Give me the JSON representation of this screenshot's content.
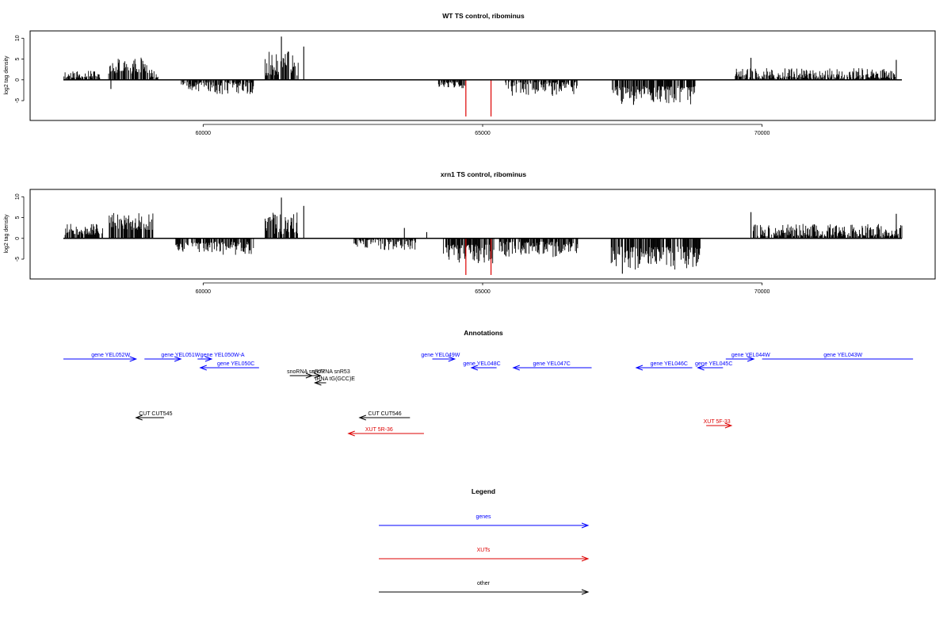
{
  "chart_data": [
    {
      "type": "bar",
      "title": "WT TS control, ribominus",
      "xlabel": "",
      "ylabel": "log2 tag density",
      "xlim": [
        57500,
        72500
      ],
      "ylim": [
        -9,
        11
      ],
      "xticks": [
        60000,
        65000,
        70000
      ],
      "xtick_labels": [
        "60000",
        "65000",
        "70000"
      ],
      "yticks": [
        10,
        5,
        0,
        -5
      ],
      "ytick_labels": [
        "10",
        "5",
        "0",
        "-5"
      ],
      "highlight_color": "#dd0000",
      "bar_color": "#000000",
      "series_segments": [
        {
          "x0": 57500,
          "x1": 58150,
          "sign": 1,
          "min": 0.5,
          "max": 2.2,
          "seed": 11
        },
        {
          "x0": 58300,
          "x1": 59000,
          "sign": 1,
          "min": 1.5,
          "max": 5.5,
          "seed": 12
        },
        {
          "x0": 59000,
          "x1": 59200,
          "sign": 1,
          "min": 0.5,
          "max": 2.5,
          "seed": 13
        },
        {
          "x0": 59600,
          "x1": 60100,
          "sign": -1,
          "min": 0.5,
          "max": 3.0,
          "seed": 14
        },
        {
          "x0": 60100,
          "x1": 60900,
          "sign": -1,
          "min": 0.5,
          "max": 3.5,
          "seed": 15
        },
        {
          "x0": 61100,
          "x1": 61700,
          "sign": 1,
          "min": 1.0,
          "max": 7.0,
          "seed": 16
        },
        {
          "x0": 64200,
          "x1": 64700,
          "sign": -1,
          "min": 0.5,
          "max": 2.5,
          "seed": 17
        },
        {
          "x0": 65400,
          "x1": 66700,
          "sign": -1,
          "min": 0.5,
          "max": 4.0,
          "seed": 18
        },
        {
          "x0": 67300,
          "x1": 68800,
          "sign": -1,
          "min": 1.5,
          "max": 6.0,
          "seed": 19
        },
        {
          "x0": 69500,
          "x1": 72400,
          "sign": 1,
          "min": 0.3,
          "max": 2.8,
          "seed": 20
        }
      ],
      "spikes": [
        {
          "x": 61400,
          "y": 10.4
        },
        {
          "x": 61800,
          "y": 8.0
        },
        {
          "x": 69800,
          "y": 5.3
        },
        {
          "x": 72400,
          "y": 4.8
        },
        {
          "x": 58350,
          "y": -2.2
        },
        {
          "x": 67700,
          "y": -6.0
        }
      ],
      "highlight_bars": [
        {
          "x": 64700,
          "y": -8.8
        },
        {
          "x": 65150,
          "y": -8.8
        }
      ]
    },
    {
      "type": "bar",
      "title": "xrn1 TS control, ribominus",
      "xlabel": "",
      "ylabel": "log2 tag density",
      "xlim": [
        57500,
        72500
      ],
      "ylim": [
        -9,
        11
      ],
      "xticks": [
        60000,
        65000,
        70000
      ],
      "xtick_labels": [
        "60000",
        "65000",
        "70000"
      ],
      "yticks": [
        10,
        5,
        0,
        -5
      ],
      "ytick_labels": [
        "10",
        "5",
        "0",
        "-5"
      ],
      "highlight_color": "#dd0000",
      "bar_color": "#000000",
      "series_segments": [
        {
          "x0": 57500,
          "x1": 58200,
          "sign": 1,
          "min": 0.8,
          "max": 3.5,
          "seed": 31
        },
        {
          "x0": 58300,
          "x1": 59100,
          "sign": 1,
          "min": 2.0,
          "max": 6.5,
          "seed": 32
        },
        {
          "x0": 59500,
          "x1": 60200,
          "sign": -1,
          "min": 1.0,
          "max": 3.5,
          "seed": 33
        },
        {
          "x0": 60200,
          "x1": 60900,
          "sign": -1,
          "min": 0.8,
          "max": 4.0,
          "seed": 34
        },
        {
          "x0": 61100,
          "x1": 61700,
          "sign": 1,
          "min": 1.0,
          "max": 6.5,
          "seed": 35
        },
        {
          "x0": 62700,
          "x1": 63800,
          "sign": -1,
          "min": 0.3,
          "max": 2.8,
          "seed": 36
        },
        {
          "x0": 64300,
          "x1": 65200,
          "sign": -1,
          "min": 1.5,
          "max": 6.0,
          "seed": 37
        },
        {
          "x0": 65300,
          "x1": 66700,
          "sign": -1,
          "min": 0.8,
          "max": 4.5,
          "seed": 38
        },
        {
          "x0": 67300,
          "x1": 68900,
          "sign": -1,
          "min": 2.0,
          "max": 7.5,
          "seed": 39
        },
        {
          "x0": 69800,
          "x1": 72500,
          "sign": 1,
          "min": 0.5,
          "max": 3.5,
          "seed": 40
        }
      ],
      "spikes": [
        {
          "x": 61400,
          "y": 9.8
        },
        {
          "x": 61800,
          "y": 7.8
        },
        {
          "x": 69800,
          "y": 6.3
        },
        {
          "x": 72400,
          "y": 5.9
        },
        {
          "x": 63600,
          "y": 2.5
        },
        {
          "x": 64000,
          "y": 1.5
        },
        {
          "x": 67500,
          "y": -8.5
        }
      ],
      "highlight_bars": [
        {
          "x": 64700,
          "y": -8.8
        },
        {
          "x": 65150,
          "y": -8.8
        }
      ]
    }
  ],
  "annotations": {
    "title": "Annotations",
    "items": [
      {
        "label": "gene YEL052W",
        "color": "#0000ff",
        "x0": 57500,
        "x1": 58800,
        "dir": "right",
        "row": 0,
        "label_x": 58000
      },
      {
        "label": "gene YEL051W",
        "color": "#0000ff",
        "x0": 58950,
        "x1": 59600,
        "dir": "right",
        "row": 0,
        "label_x": 59250
      },
      {
        "label": "gene YEL050W-A",
        "color": "#0000ff",
        "x0": 59900,
        "x1": 60150,
        "dir": "right",
        "row": 0,
        "label_x": 59950
      },
      {
        "label": "gene YEL050C",
        "color": "#0000ff",
        "x0": 59950,
        "x1": 61000,
        "dir": "left",
        "row": 1,
        "label_x": 60250
      },
      {
        "label": "snoRNA snR77",
        "color": "#000000",
        "x0": 61550,
        "x1": 61950,
        "dir": "right",
        "row": 2,
        "label_x": 61500
      },
      {
        "label": "snoRNA snR53",
        "color": "#000000",
        "x0": 61900,
        "x1": 62100,
        "dir": "right",
        "row": 2,
        "label_x": 61950
      },
      {
        "label": "tRNA tG(GCC)E",
        "color": "#000000",
        "x0": 62000,
        "x1": 62200,
        "dir": "left",
        "row": 3,
        "label_x": 62000
      },
      {
        "label": "gene YEL049W",
        "color": "#0000ff",
        "x0": 64100,
        "x1": 64500,
        "dir": "right",
        "row": 0,
        "label_x": 63900
      },
      {
        "label": "gene YEL048C",
        "color": "#0000ff",
        "x0": 64800,
        "x1": 65250,
        "dir": "left",
        "row": 1,
        "label_x": 64650
      },
      {
        "label": "gene YEL047C",
        "color": "#0000ff",
        "x0": 65550,
        "x1": 66950,
        "dir": "left",
        "row": 1,
        "label_x": 65900
      },
      {
        "label": "gene YEL046C",
        "color": "#0000ff",
        "x0": 67750,
        "x1": 68750,
        "dir": "left",
        "row": 1,
        "label_x": 68000
      },
      {
        "label": "gene YEL045C",
        "color": "#0000ff",
        "x0": 68850,
        "x1": 69300,
        "dir": "left",
        "row": 1,
        "label_x": 68800
      },
      {
        "label": "gene YEL044W",
        "color": "#0000ff",
        "x0": 69350,
        "x1": 69850,
        "dir": "right",
        "row": 0,
        "label_x": 69450
      },
      {
        "label": "gene YEL043W",
        "color": "#0000ff",
        "x0": 70000,
        "x1": 72700,
        "dir": "none",
        "row": 0,
        "label_x": 71100
      },
      {
        "label": "CUT CUT545",
        "color": "#000000",
        "x0": 58800,
        "x1": 59300,
        "dir": "left",
        "row": 4,
        "label_x": 58850
      },
      {
        "label": "CUT CUT546",
        "color": "#000000",
        "x0": 62800,
        "x1": 63700,
        "dir": "left",
        "row": 4,
        "label_x": 62950
      },
      {
        "label": "XUT 5R-36",
        "color": "#dd0000",
        "x0": 62600,
        "x1": 63950,
        "dir": "left",
        "row": 5,
        "label_x": 62900
      },
      {
        "label": "XUT 5F-33",
        "color": "#dd0000",
        "x0": 69000,
        "x1": 69450,
        "dir": "right",
        "row": 6,
        "label_x": 68950
      }
    ]
  },
  "legend": {
    "title": "Legend",
    "items": [
      {
        "label": "genes",
        "color": "#0000ff"
      },
      {
        "label": "XUTs",
        "color": "#dd0000"
      },
      {
        "label": "other",
        "color": "#000000"
      }
    ]
  }
}
